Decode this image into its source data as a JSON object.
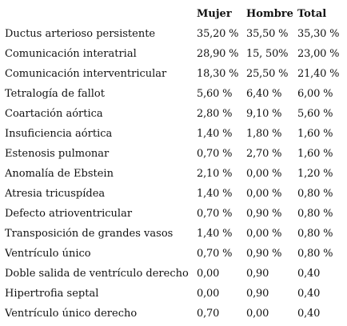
{
  "table": {
    "headers": [
      "",
      "Mujer",
      "Hombre",
      "Total"
    ],
    "rows": [
      [
        "Ductus arterioso persistente",
        "35,20 %",
        "35,50 %",
        "35,30 %"
      ],
      [
        "Comunicación interatrial",
        "28,90 %",
        "15, 50%",
        "23,00 %"
      ],
      [
        "Comunicación interventricular",
        "18,30 %",
        "25,50 %",
        "21,40 %"
      ],
      [
        "Tetralogía de fallot",
        "5,60 %",
        "6,40 %",
        "6,00 %"
      ],
      [
        "Coartación aórtica",
        "2,80 %",
        "9,10 %",
        "5,60 %"
      ],
      [
        "Insuficiencia aórtica",
        "1,40 %",
        "1,80 %",
        "1,60 %"
      ],
      [
        "Estenosis pulmonar",
        "0,70 %",
        "2,70 %",
        "1,60 %"
      ],
      [
        "Anomalía de Ebstein",
        "2,10 %",
        "0,00 %",
        "1,20 %"
      ],
      [
        "Atresia tricuspídea",
        "1,40 %",
        "0,00 %",
        "0,80 %"
      ],
      [
        "Defecto atrioventricular",
        "0,70 %",
        "0,90 %",
        "0,80 %"
      ],
      [
        "Transposición de grandes vasos",
        "1,40 %",
        "0,00 %",
        "0,80 %"
      ],
      [
        "Ventrículo único",
        "0,70 %",
        "0,90 %",
        "0,80 %"
      ],
      [
        "Doble salida de ventrículo derecho",
        "0,00",
        "0,90",
        "0,40"
      ],
      [
        "Hipertrofia septal",
        "0,00",
        "0,90",
        "0,40"
      ],
      [
        "Ventrículo único derecho",
        "0,70",
        "0,00",
        "0,40"
      ]
    ]
  }
}
